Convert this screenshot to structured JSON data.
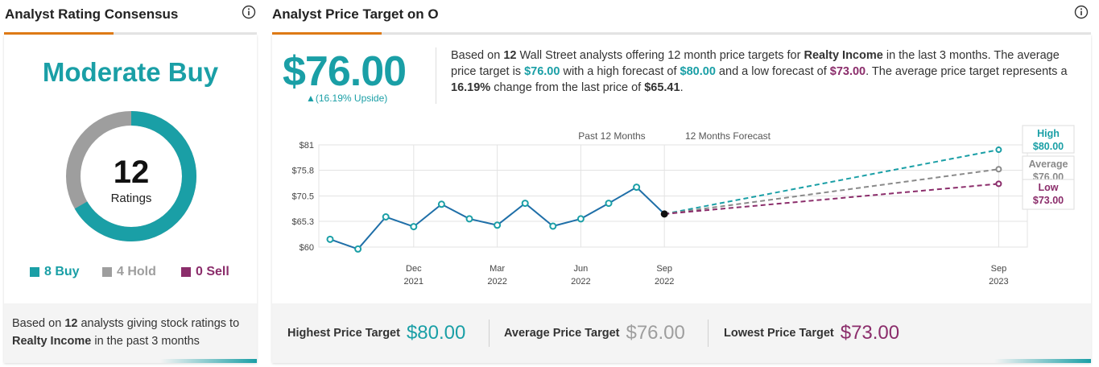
{
  "left_panel": {
    "title": "Analyst Rating Consensus",
    "consensus": "Moderate Buy",
    "total_ratings": "12",
    "ratings_label": "Ratings",
    "breakdown": [
      {
        "label": "8 Buy",
        "count": 8,
        "color": "#1a9fa6"
      },
      {
        "label": "4 Hold",
        "count": 4,
        "color": "#9e9e9e"
      },
      {
        "label": "0 Sell",
        "count": 0,
        "color": "#8b2d6b"
      }
    ],
    "footer": {
      "pre": "Based on ",
      "count": "12",
      "mid": " analysts giving stock ratings to ",
      "company": "Realty Income",
      "post": " in the past 3 months"
    }
  },
  "right_panel": {
    "title": "Analyst Price Target on O",
    "price_target": "$76.00",
    "upside": "▲(16.19% Upside)",
    "description": {
      "t1": "Based on ",
      "analysts": "12",
      "t2": " Wall Street analysts offering 12 month price targets for ",
      "company": "Realty Income",
      "t3": " in the last 3 months. The average price target is ",
      "avg": "$76.00",
      "t4": " with a high forecast of ",
      "high": "$80.00",
      "t5": " and a low forecast of ",
      "low": "$73.00",
      "t6": ". The average price target represents a ",
      "change": "16.19%",
      "t7": " change from the last price of ",
      "last": "$65.41",
      "t8": "."
    },
    "bottom": {
      "highest_label": "Highest Price Target",
      "highest_value": "$80.00",
      "average_label": "Average Price Target",
      "average_value": "$76.00",
      "lowest_label": "Lowest Price Target",
      "lowest_value": "$73.00"
    }
  },
  "colors": {
    "teal": "#1a9fa6",
    "gray": "#9e9e9e",
    "purple": "#8b2d6b",
    "orange": "#e07b16",
    "history": "#1f6fa8"
  },
  "chart_data": {
    "type": "line",
    "section_labels": [
      "Past 12 Months",
      "12 Months Forecast"
    ],
    "y_ticks": [
      "$81",
      "$75.8",
      "$70.5",
      "$65.3",
      "$60"
    ],
    "ylim": [
      60,
      81
    ],
    "x_ticks": [
      {
        "month": "Dec",
        "year": "2021"
      },
      {
        "month": "Mar",
        "year": "2022"
      },
      {
        "month": "Jun",
        "year": "2022"
      },
      {
        "month": "Sep",
        "year": "2022"
      },
      {
        "month": "Sep",
        "year": "2023"
      }
    ],
    "history": {
      "name": "Price",
      "x": [
        "2021-09",
        "2021-10",
        "2021-11",
        "2021-12",
        "2022-01",
        "2022-02",
        "2022-03",
        "2022-04",
        "2022-05",
        "2022-06",
        "2022-07",
        "2022-08",
        "2022-09"
      ],
      "values": [
        61.6,
        59.6,
        66.2,
        64.2,
        68.8,
        65.8,
        64.5,
        69.0,
        64.3,
        65.8,
        69.0,
        72.3,
        66.8
      ]
    },
    "last_price": 65.41,
    "forecast": [
      {
        "name": "High",
        "value": 80.0,
        "label": "$80.00",
        "color": "#1a9fa6"
      },
      {
        "name": "Average",
        "value": 76.0,
        "label": "$76.00",
        "color": "#8a8a8a"
      },
      {
        "name": "Low",
        "value": 73.0,
        "label": "$73.00",
        "color": "#8b2d6b"
      }
    ]
  }
}
